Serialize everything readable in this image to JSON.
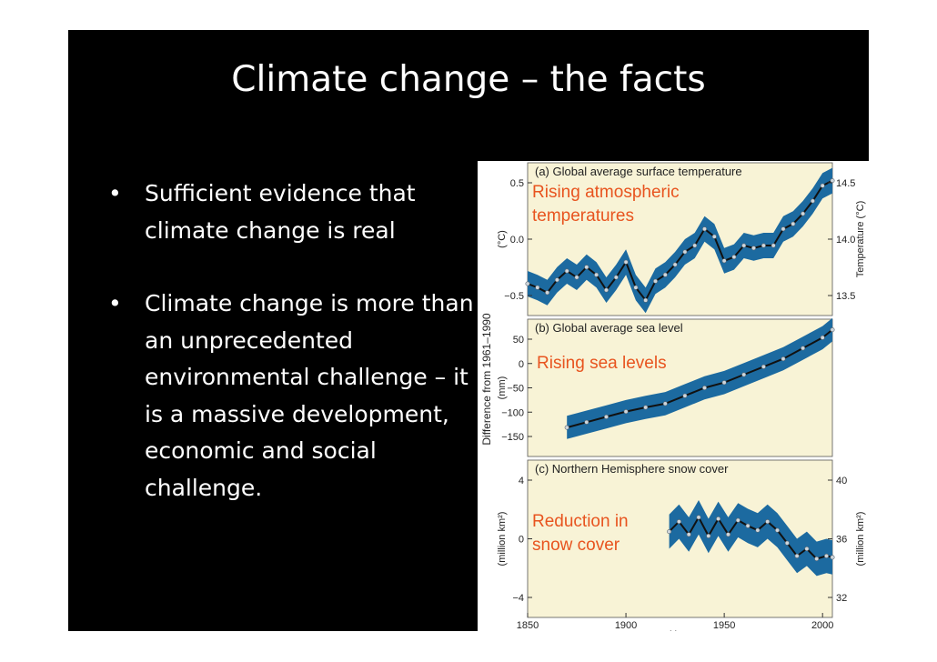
{
  "slide": {
    "title": "Climate change – the facts",
    "bullet_glyph": "•",
    "bullets": [
      "Sufficient evidence that climate change is real",
      "Climate change is more than an unprecedented environmental challenge – it is a massive development, economic and social challenge."
    ]
  },
  "figure": {
    "shared_ylabel": "Difference from 1961–1990",
    "chart_data": [
      {
        "type": "line",
        "title": "(a) Global average surface temperature",
        "annotation": [
          "Rising atmospheric",
          "temperatures"
        ],
        "ylabel_left": "(°C)",
        "ylabel_right": "Temperature (°C)",
        "left_ticks": [
          "0.5",
          "0.0",
          "−0.5"
        ],
        "right_ticks": [
          "14.5",
          "14.0",
          "13.5"
        ],
        "xlim": [
          1850,
          2005
        ],
        "ylim": [
          -0.6,
          0.6
        ],
        "x": [
          1850,
          1855,
          1860,
          1865,
          1870,
          1875,
          1880,
          1885,
          1890,
          1895,
          1900,
          1905,
          1910,
          1915,
          1920,
          1925,
          1930,
          1935,
          1940,
          1945,
          1950,
          1955,
          1960,
          1965,
          1970,
          1975,
          1980,
          1985,
          1990,
          1995,
          2000,
          2005
        ],
        "y": [
          -0.35,
          -0.38,
          -0.42,
          -0.32,
          -0.25,
          -0.3,
          -0.22,
          -0.28,
          -0.4,
          -0.3,
          -0.18,
          -0.38,
          -0.48,
          -0.33,
          -0.28,
          -0.2,
          -0.1,
          -0.05,
          0.08,
          0.02,
          -0.17,
          -0.14,
          -0.05,
          -0.07,
          -0.05,
          -0.05,
          0.08,
          0.12,
          0.2,
          0.3,
          0.42,
          0.46
        ],
        "band": 0.1
      },
      {
        "type": "line",
        "title": "(b) Global average sea level",
        "annotation": [
          "Rising sea levels"
        ],
        "ylabel_left": "(mm)",
        "left_ticks": [
          "50",
          "0",
          "−50",
          "−100",
          "−150"
        ],
        "xlim": [
          1850,
          2005
        ],
        "ylim": [
          -185,
          75
        ],
        "x": [
          1870,
          1880,
          1890,
          1900,
          1910,
          1920,
          1930,
          1940,
          1950,
          1960,
          1970,
          1980,
          1990,
          2000,
          2005
        ],
        "y": [
          -130,
          -120,
          -110,
          -100,
          -92,
          -85,
          -70,
          -55,
          -45,
          -30,
          -15,
          0,
          20,
          40,
          55
        ],
        "band": 22
      },
      {
        "type": "line",
        "title": "(c) Northern Hemisphere snow cover",
        "annotation": [
          "Reduction in",
          "snow cover"
        ],
        "ylabel_left": "(million km²)",
        "ylabel_right": "(million km²)",
        "left_ticks": [
          "4",
          "0",
          "−4"
        ],
        "right_ticks": [
          "40",
          "36",
          "32"
        ],
        "x_ticks": [
          "1850",
          "1900",
          "1950",
          "2000"
        ],
        "xlabel": "Year",
        "xlim": [
          1850,
          2005
        ],
        "ylim": [
          -5.5,
          5.5
        ],
        "x": [
          1922,
          1927,
          1932,
          1937,
          1942,
          1947,
          1952,
          1957,
          1962,
          1967,
          1972,
          1977,
          1982,
          1987,
          1992,
          1997,
          2002,
          2005
        ],
        "y": [
          0.5,
          1.2,
          0.3,
          1.5,
          0.2,
          1.4,
          0.3,
          1.3,
          0.9,
          0.6,
          1.2,
          0.6,
          -0.3,
          -1.2,
          -0.7,
          -1.4,
          -1.2,
          -1.3
        ],
        "band": 1.2
      }
    ]
  },
  "colors": {
    "panel_bg": "#f8f3d6",
    "band": "#1c6aa0",
    "line": "#111111",
    "points": "#cfd6dc",
    "annotation": "#e8541f",
    "slide_bg": "#000000",
    "slide_text": "#ffffff"
  }
}
